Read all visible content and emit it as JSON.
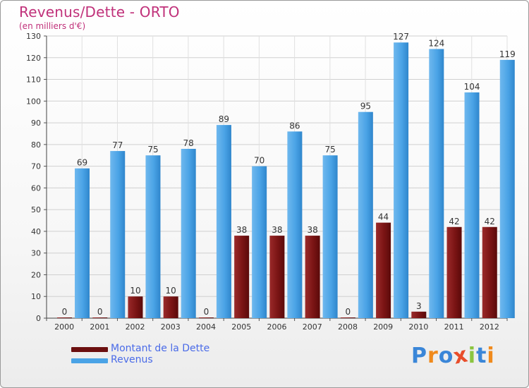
{
  "title": "Revenus/Dette - ORTO",
  "subtitle": "(en milliers d'€)",
  "colors": {
    "dette": "#7a1414",
    "revenus": "#4aa3e6",
    "title": "#c0317a",
    "legend_text": "#4a6be8"
  },
  "legend": {
    "items": [
      {
        "label": "Montant de la Dette",
        "color": "#6b0f0f"
      },
      {
        "label": "Revenus",
        "color": "#4aa3e6"
      }
    ]
  },
  "logo": {
    "text": "Proxiti",
    "letters": [
      {
        "ch": "P",
        "color": "#3a86d8"
      },
      {
        "ch": "r",
        "color": "#f08a1c"
      },
      {
        "ch": "o",
        "color": "#3a86d8"
      },
      {
        "ch": "x",
        "color": "#e84d2a"
      },
      {
        "ch": "i",
        "color": "#8bc53f"
      },
      {
        "ch": "t",
        "color": "#3a86d8"
      },
      {
        "ch": "i",
        "color": "#f08a1c"
      }
    ]
  },
  "chart_data": {
    "type": "bar",
    "categories": [
      "2000",
      "2001",
      "2002",
      "2003",
      "2004",
      "2005",
      "2006",
      "2007",
      "2008",
      "2009",
      "2010",
      "2011",
      "2012"
    ],
    "series": [
      {
        "name": "Montant de la Dette",
        "values": [
          0,
          0,
          10,
          10,
          0,
          38,
          38,
          38,
          0,
          44,
          3,
          42,
          42
        ]
      },
      {
        "name": "Revenus",
        "values": [
          69,
          77,
          75,
          78,
          89,
          70,
          86,
          75,
          95,
          127,
          124,
          104,
          119
        ]
      }
    ],
    "ylim": [
      0,
      130
    ],
    "yticks": [
      0,
      10,
      20,
      30,
      40,
      50,
      60,
      70,
      80,
      90,
      100,
      110,
      120,
      130
    ],
    "grid": true,
    "legend_position": "bottom-left"
  }
}
